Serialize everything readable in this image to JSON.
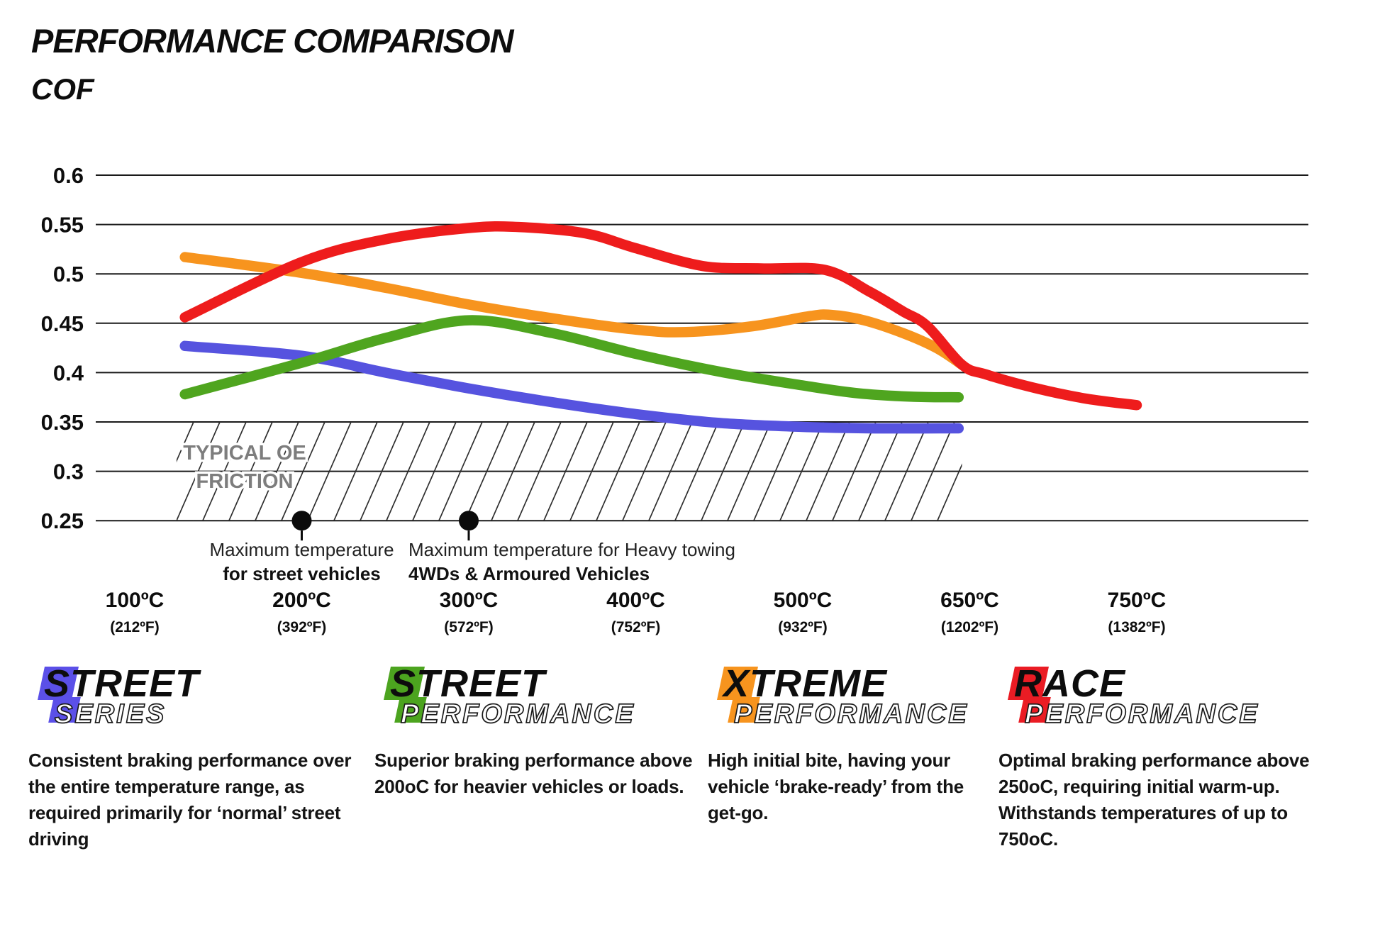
{
  "header": {
    "title": "PERFORMANCE COMPARISON",
    "subtitle": "COF"
  },
  "chart_data": {
    "type": "line",
    "title": "PERFORMANCE COMPARISON",
    "ylabel": "COF",
    "grid": true,
    "y_axis": {
      "min": 0.25,
      "max": 0.6,
      "step": 0.05,
      "ticks": [
        {
          "value": 0.6,
          "label": "0.6"
        },
        {
          "value": 0.55,
          "label": "0.55"
        },
        {
          "value": 0.5,
          "label": "0.5"
        },
        {
          "value": 0.45,
          "label": "0.45"
        },
        {
          "value": 0.4,
          "label": "0.4"
        },
        {
          "value": 0.35,
          "label": "0.35"
        },
        {
          "value": 0.3,
          "label": "0.3"
        },
        {
          "value": 0.25,
          "label": "0.25"
        }
      ]
    },
    "x_axis": {
      "unit": "°C",
      "ticks": [
        {
          "temp": 100,
          "c": "100ºC",
          "f": "(212ºF)"
        },
        {
          "temp": 200,
          "c": "200ºC",
          "f": "(392ºF)"
        },
        {
          "temp": 300,
          "c": "300ºC",
          "f": "(572ºF)"
        },
        {
          "temp": 400,
          "c": "400ºC",
          "f": "(752ºF)"
        },
        {
          "temp": 500,
          "c": "500ºC",
          "f": "(932ºF)"
        },
        {
          "temp": 650,
          "c": "650ºC",
          "f": "(1202ºF)"
        },
        {
          "temp": 750,
          "c": "750ºC",
          "f": "(1382ºF)"
        }
      ]
    },
    "oe_band": {
      "label_line1": "TYPICAL OE",
      "label_line2": "FRICTION",
      "cof_from": 0.25,
      "cof_to": 0.35,
      "temp_from": 125,
      "temp_to": 643,
      "label_color": "#7d7d7d"
    },
    "markers": [
      {
        "temp": 200,
        "cof": 0.25,
        "align": "center",
        "line1": "Maximum temperature",
        "line2": "for street vehicles"
      },
      {
        "temp": 300,
        "cof": 0.25,
        "align": "left",
        "line1": "Maximum temperature for Heavy towing",
        "line2": "4WDs & Armoured Vehicles"
      }
    ],
    "series": [
      {
        "name": "Street Series",
        "color": "#5653DF",
        "points": [
          [
            130,
            0.427
          ],
          [
            200,
            0.417
          ],
          [
            250,
            0.4
          ],
          [
            300,
            0.384
          ],
          [
            350,
            0.37
          ],
          [
            400,
            0.358
          ],
          [
            450,
            0.349
          ],
          [
            500,
            0.345
          ],
          [
            560,
            0.3435
          ],
          [
            640,
            0.3435
          ]
        ]
      },
      {
        "name": "Street Performance",
        "color": "#4FA51F",
        "points": [
          [
            130,
            0.378
          ],
          [
            200,
            0.41
          ],
          [
            250,
            0.435
          ],
          [
            300,
            0.453
          ],
          [
            350,
            0.44
          ],
          [
            400,
            0.419
          ],
          [
            450,
            0.401
          ],
          [
            500,
            0.387
          ],
          [
            550,
            0.379
          ],
          [
            600,
            0.3755
          ],
          [
            640,
            0.375
          ]
        ]
      },
      {
        "name": "Xtreme Performance",
        "color": "#F7941E",
        "points": [
          [
            130,
            0.517
          ],
          [
            200,
            0.501
          ],
          [
            250,
            0.486
          ],
          [
            300,
            0.469
          ],
          [
            350,
            0.455
          ],
          [
            400,
            0.4435
          ],
          [
            430,
            0.441
          ],
          [
            470,
            0.447
          ],
          [
            505,
            0.457
          ],
          [
            525,
            0.4585
          ],
          [
            555,
            0.453
          ],
          [
            590,
            0.44
          ],
          [
            620,
            0.425
          ],
          [
            643,
            0.408
          ]
        ]
      },
      {
        "name": "Race Performance",
        "color": "#EE1C1C",
        "points": [
          [
            130,
            0.456
          ],
          [
            200,
            0.512
          ],
          [
            250,
            0.535
          ],
          [
            300,
            0.5465
          ],
          [
            330,
            0.5475
          ],
          [
            370,
            0.541
          ],
          [
            400,
            0.526
          ],
          [
            440,
            0.508
          ],
          [
            475,
            0.5055
          ],
          [
            520,
            0.504
          ],
          [
            560,
            0.482
          ],
          [
            590,
            0.462
          ],
          [
            612,
            0.447
          ],
          [
            643,
            0.408
          ],
          [
            660,
            0.398
          ],
          [
            690,
            0.384
          ],
          [
            720,
            0.3735
          ],
          [
            750,
            0.367
          ]
        ]
      }
    ]
  },
  "legend": [
    {
      "word1": "STREET",
      "word2": "SERIES",
      "color": "#5B50E8",
      "description": "Consistent braking performance over the entire temperature range, as required primarily for ‘normal’ street driving"
    },
    {
      "word1": "STREET",
      "word2": "PERFORMANCE",
      "color": "#4CA41F",
      "description": "Superior braking performance above 200oC for heavier vehicles or loads."
    },
    {
      "word1": "XTREME",
      "word2": "PERFORMANCE",
      "color": "#F7941E",
      "description": "High initial bite, having your vehicle ‘brake-ready’ from the get-go."
    },
    {
      "word1": "RACE",
      "word2": "PERFORMANCE",
      "color": "#EA1C24",
      "description": "Optimal braking performance above 250oC, requiring initial warm-up. Withstands temperatures of up to 750oC."
    }
  ]
}
